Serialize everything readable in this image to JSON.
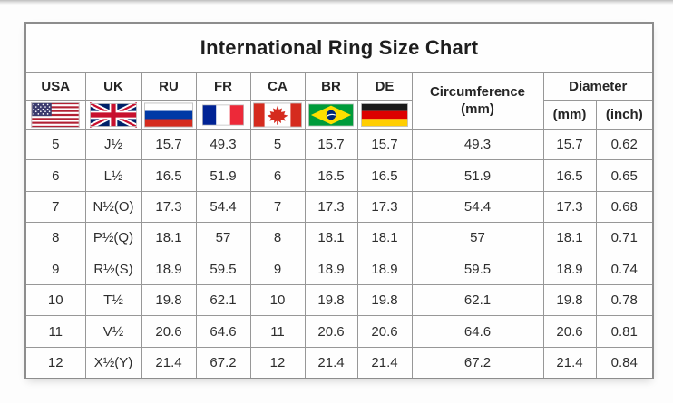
{
  "chart_data": {
    "type": "table",
    "title": "International Ring Size Chart",
    "country_columns": [
      {
        "label": "USA",
        "icon": "usa-flag-icon"
      },
      {
        "label": "UK",
        "icon": "uk-flag-icon"
      },
      {
        "label": "RU",
        "icon": "russia-flag-icon"
      },
      {
        "label": "FR",
        "icon": "france-flag-icon"
      },
      {
        "label": "CA",
        "icon": "canada-flag-icon"
      },
      {
        "label": "BR",
        "icon": "brazil-flag-icon"
      },
      {
        "label": "DE",
        "icon": "germany-flag-icon"
      }
    ],
    "circumference_column": {
      "line1": "Circumference",
      "line2": "(mm)"
    },
    "diameter_column": {
      "label": "Diameter",
      "sub_mm": "(mm)",
      "sub_inch": "(inch)"
    },
    "column_keys": [
      "usa",
      "uk",
      "ru",
      "fr",
      "ca",
      "br",
      "de",
      "circumference-mm",
      "diameter-mm",
      "diameter-inch"
    ],
    "rows": [
      [
        "5",
        "J½",
        "15.7",
        "49.3",
        "5",
        "15.7",
        "15.7",
        "49.3",
        "15.7",
        "0.62"
      ],
      [
        "6",
        "L½",
        "16.5",
        "51.9",
        "6",
        "16.5",
        "16.5",
        "51.9",
        "16.5",
        "0.65"
      ],
      [
        "7",
        "N½(O)",
        "17.3",
        "54.4",
        "7",
        "17.3",
        "17.3",
        "54.4",
        "17.3",
        "0.68"
      ],
      [
        "8",
        "P½(Q)",
        "18.1",
        "57",
        "8",
        "18.1",
        "18.1",
        "57",
        "18.1",
        "0.71"
      ],
      [
        "9",
        "R½(S)",
        "18.9",
        "59.5",
        "9",
        "18.9",
        "18.9",
        "59.5",
        "18.9",
        "0.74"
      ],
      [
        "10",
        "T½",
        "19.8",
        "62.1",
        "10",
        "19.8",
        "19.8",
        "62.1",
        "19.8",
        "0.78"
      ],
      [
        "11",
        "V½",
        "20.6",
        "64.6",
        "11",
        "20.6",
        "20.6",
        "64.6",
        "20.6",
        "0.81"
      ],
      [
        "12",
        "X½(Y)",
        "21.4",
        "67.2",
        "12",
        "21.4",
        "21.4",
        "67.2",
        "21.4",
        "0.84"
      ]
    ],
    "colors": {
      "grid": "#979797",
      "outer_border": "#8d8d8d",
      "title_text": "#1e1e1e",
      "body_text": "#2e2e2e"
    }
  }
}
